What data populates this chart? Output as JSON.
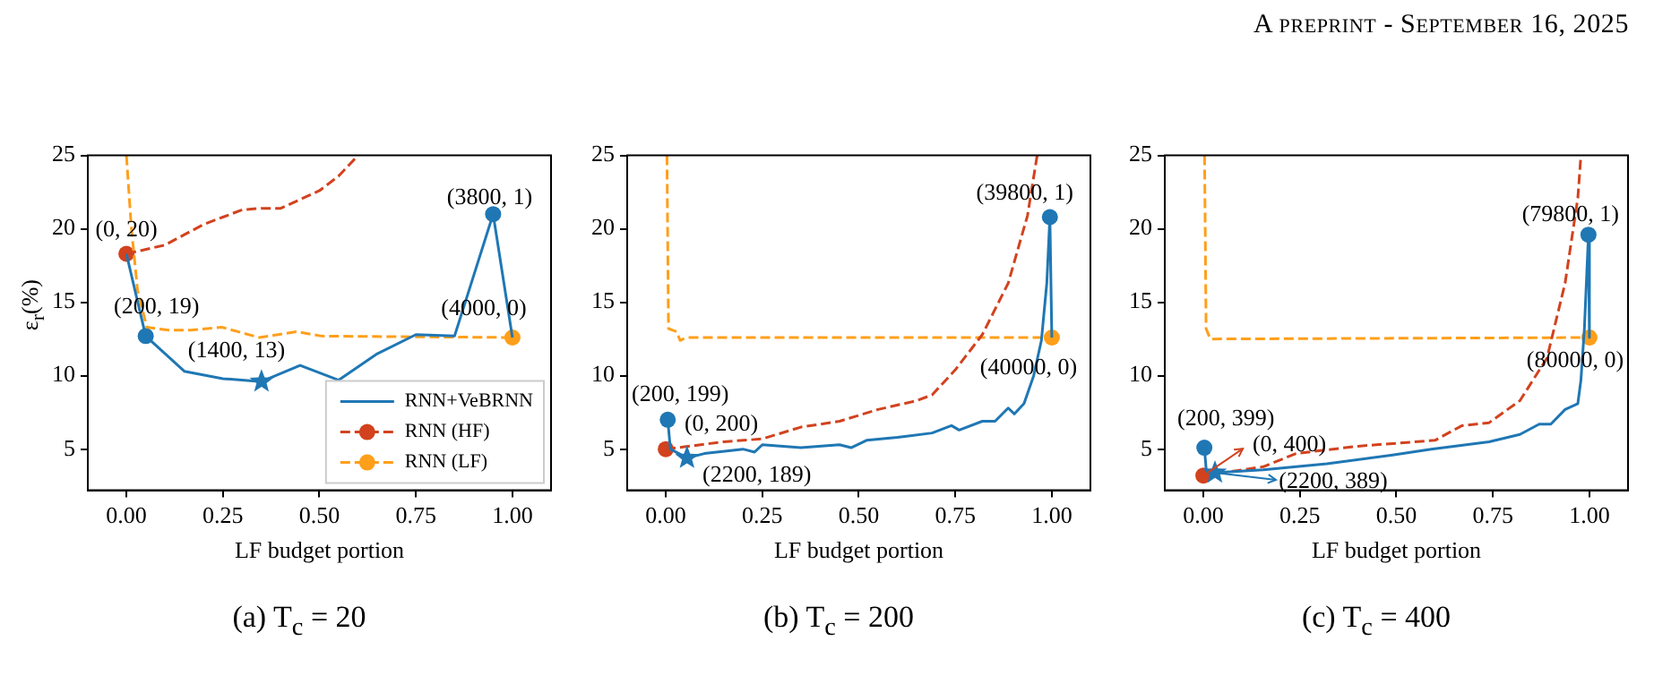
{
  "chart_data": [
    {
      "type": "line",
      "xlabel": "LF budget portion",
      "ylabel": "ε$_{r}$(%)",
      "xlim": [
        -0.1,
        1.1
      ],
      "ylim": [
        2.2,
        25
      ],
      "xticks": [
        {
          "value": 0,
          "label": "0.00"
        },
        {
          "value": 0.25,
          "label": "0.25"
        },
        {
          "value": 0.5,
          "label": "0.50"
        },
        {
          "value": 0.75,
          "label": "0.75"
        },
        {
          "value": 1,
          "label": "1.00"
        }
      ],
      "yticks": [
        5,
        10,
        15,
        20,
        25
      ],
      "grid": false,
      "legend": "bottom right",
      "series": [
        {
          "type": "line",
          "name": "RNN+VeBRNN",
          "color": "#1f77b4",
          "line_style": "solid",
          "x": [
            0,
            0.05,
            0.15,
            0.25,
            0.35,
            0.45,
            0.55,
            0.65,
            0.75,
            0.85,
            0.95,
            1.0
          ],
          "values": [
            18.3,
            12.7,
            10.3,
            9.8,
            9.6,
            10.7,
            9.7,
            11.5,
            12.8,
            12.7,
            21.0,
            12.6
          ]
        },
        {
          "type": "line",
          "name": "RNN (HF)",
          "color": "#d2421e",
          "line_style": "dashed",
          "x": [
            0,
            0.1,
            0.15,
            0.2,
            0.25,
            0.3,
            0.35,
            0.4,
            0.45,
            0.5,
            0.55,
            0.6
          ],
          "values": [
            18.3,
            18.9,
            19.6,
            20.3,
            20.8,
            21.3,
            21.4,
            21.4,
            22.0,
            22.6,
            23.6,
            25.0
          ]
        },
        {
          "type": "line",
          "name": "RNN (LF)",
          "color": "#ff9f1a",
          "line_style": "dashed",
          "x": [
            0,
            0.013,
            0.029,
            0.053,
            0.11,
            0.166,
            0.247,
            0.344,
            0.44,
            0.505,
            1.0
          ],
          "values": [
            25.0,
            20.0,
            15.8,
            13.3,
            13.1,
            13.1,
            13.3,
            12.6,
            13.0,
            12.7,
            12.6
          ]
        },
        {
          "type": "scatter",
          "color": "#1f77b4",
          "marker": "circle",
          "x": [
            0.05,
            0.95
          ],
          "values": [
            12.7,
            21.0
          ]
        },
        {
          "type": "scatter",
          "color": "#1f77b4",
          "marker": "star",
          "x": [
            0.35
          ],
          "values": [
            9.6
          ]
        },
        {
          "type": "scatter",
          "color": "#d2421e",
          "marker": "circle",
          "x": [
            0
          ],
          "values": [
            18.3
          ]
        },
        {
          "type": "scatter",
          "color": "#ff9f1a",
          "marker": "circle",
          "x": [
            1.0
          ],
          "values": [
            12.6
          ]
        }
      ],
      "annotations": [
        "A preprint - September 16, 2025",
        {
          "text": "(0, 20)",
          "x": 0,
          "y": 18.3
        },
        {
          "text": "(200, 19)",
          "x": 0.05,
          "y": 12.7
        },
        {
          "text": "(1400, 13)",
          "x": 0.35,
          "y": 9.6
        },
        {
          "text": "(3800, 1)",
          "x": 0.95,
          "y": 21.0
        },
        {
          "text": "(4000, 0)",
          "x": 1.0,
          "y": 12.6
        },
        "(a) T$_{c}$ = 20"
      ]
    },
    {
      "type": "line",
      "xlabel": "LF budget portion",
      "xlim": [
        -0.1,
        1.1
      ],
      "ylim": [
        2.2,
        25
      ],
      "xticks": [
        {
          "value": 0,
          "label": "0.00"
        },
        {
          "value": 0.25,
          "label": "0.25"
        },
        {
          "value": 0.5,
          "label": "0.50"
        },
        {
          "value": 0.75,
          "label": "0.75"
        },
        {
          "value": 1,
          "label": "1.00"
        }
      ],
      "yticks": [
        5,
        10,
        15,
        20,
        25
      ],
      "grid": false,
      "series": [
        {
          "type": "line",
          "color": "#1f77b4",
          "line_style": "solid",
          "x": [
            0.005,
            0.012,
            0.055,
            0.1,
            0.2,
            0.23,
            0.25,
            0.35,
            0.45,
            0.48,
            0.52,
            0.6,
            0.69,
            0.74,
            0.76,
            0.82,
            0.853,
            0.887,
            0.903,
            0.928,
            0.953,
            0.973,
            0.987,
            0.995,
            1.0
          ],
          "values": [
            7.0,
            5.0,
            4.4,
            4.7,
            5.0,
            4.8,
            5.3,
            5.1,
            5.3,
            5.1,
            5.6,
            5.8,
            6.1,
            6.6,
            6.3,
            6.9,
            6.9,
            7.8,
            7.4,
            8.1,
            10.0,
            12.4,
            16.3,
            20.8,
            12.6
          ]
        },
        {
          "type": "line",
          "color": "#d2421e",
          "line_style": "dashed",
          "x": [
            0,
            0.15,
            0.25,
            0.35,
            0.45,
            0.55,
            0.65,
            0.69,
            0.75,
            0.82,
            0.887,
            0.937,
            0.962
          ],
          "values": [
            5.0,
            5.5,
            5.7,
            6.5,
            6.9,
            7.7,
            8.3,
            8.7,
            10.4,
            12.8,
            16.3,
            20.9,
            25.0
          ]
        },
        {
          "type": "line",
          "color": "#ff9f1a",
          "line_style": "dashed",
          "x": [
            0.003,
            0.007,
            0.028,
            0.037,
            0.053,
            1.0
          ],
          "values": [
            25.0,
            13.2,
            13.0,
            12.4,
            12.6,
            12.6
          ]
        },
        {
          "type": "scatter",
          "color": "#1f77b4",
          "marker": "circle",
          "x": [
            0.005,
            0.995
          ],
          "values": [
            7.0,
            20.8
          ]
        },
        {
          "type": "scatter",
          "color": "#1f77b4",
          "marker": "star",
          "x": [
            0.055
          ],
          "values": [
            4.4
          ]
        },
        {
          "type": "scatter",
          "color": "#d2421e",
          "marker": "circle",
          "x": [
            0
          ],
          "values": [
            5.0
          ]
        },
        {
          "type": "scatter",
          "color": "#ff9f1a",
          "marker": "circle",
          "x": [
            1.0
          ],
          "values": [
            12.6
          ]
        }
      ],
      "annotations": [
        {
          "text": "(200, 199)",
          "x": 0.005,
          "y": 7.0
        },
        {
          "text": "(0, 200)",
          "x": 0,
          "y": 5.0
        },
        {
          "text": "(2200, 189)",
          "x": 0.055,
          "y": 4.4
        },
        {
          "text": "(39800, 1)",
          "x": 0.995,
          "y": 20.8
        },
        {
          "text": "(40000, 0)",
          "x": 1.0,
          "y": 12.6
        },
        "(b) T$_{c}$ = 200"
      ]
    },
    {
      "type": "line",
      "xlabel": "LF budget portion",
      "xlim": [
        -0.1,
        1.1
      ],
      "ylim": [
        2.2,
        25
      ],
      "xticks": [
        {
          "value": 0,
          "label": "0.00"
        },
        {
          "value": 0.25,
          "label": "0.25"
        },
        {
          "value": 0.5,
          "label": "0.50"
        },
        {
          "value": 0.75,
          "label": "0.75"
        },
        {
          "value": 1,
          "label": "1.00"
        }
      ],
      "yticks": [
        5,
        10,
        15,
        20,
        25
      ],
      "grid": false,
      "series": [
        {
          "type": "line",
          "color": "#1f77b4",
          "line_style": "solid",
          "x": [
            0.0025,
            0.008,
            0.03,
            0.155,
            0.32,
            0.49,
            0.59,
            0.74,
            0.82,
            0.87,
            0.9,
            0.937,
            0.97,
            0.978,
            0.987,
            0.9975,
            1.0
          ],
          "values": [
            5.1,
            3.4,
            3.4,
            3.6,
            4.0,
            4.6,
            5.0,
            5.5,
            6.0,
            6.7,
            6.7,
            7.7,
            8.1,
            9.7,
            13.2,
            19.6,
            12.6
          ]
        },
        {
          "type": "line",
          "color": "#d2421e",
          "line_style": "dashed",
          "x": [
            0,
            0.155,
            0.24,
            0.4,
            0.6,
            0.67,
            0.74,
            0.82,
            0.89,
            0.937,
            0.97,
            0.978
          ],
          "values": [
            3.2,
            3.8,
            4.7,
            5.2,
            5.6,
            6.6,
            6.8,
            8.3,
            11.2,
            16.3,
            22.1,
            25.0
          ]
        },
        {
          "type": "line",
          "color": "#ff9f1a",
          "line_style": "dashed",
          "x": [
            0.003,
            0.007,
            0.018,
            1.0
          ],
          "values": [
            25.0,
            13.2,
            12.5,
            12.6
          ]
        },
        {
          "type": "scatter",
          "color": "#1f77b4",
          "marker": "circle",
          "x": [
            0.0025,
            0.9975
          ],
          "values": [
            5.1,
            19.6
          ]
        },
        {
          "type": "scatter",
          "color": "#1f77b4",
          "marker": "star",
          "x": [
            0.03
          ],
          "values": [
            3.4
          ]
        },
        {
          "type": "scatter",
          "color": "#d2421e",
          "marker": "circle",
          "x": [
            0
          ],
          "values": [
            3.2
          ]
        },
        {
          "type": "scatter",
          "color": "#ff9f1a",
          "marker": "circle",
          "x": [
            1.0
          ],
          "values": [
            12.6
          ]
        }
      ],
      "annotations": [
        {
          "text": "(200, 399)",
          "x": 0.0025,
          "y": 5.1
        },
        {
          "text": "(0, 400)",
          "x": 0,
          "y": 3.2
        },
        {
          "text": "(2200, 389)",
          "x": 0.03,
          "y": 3.4
        },
        {
          "text": "(79800, 1)",
          "x": 0.9975,
          "y": 19.6
        },
        {
          "text": "(80000, 0)",
          "x": 1.0,
          "y": 12.6
        },
        "(c) T$_{c}$ = 400"
      ]
    }
  ]
}
